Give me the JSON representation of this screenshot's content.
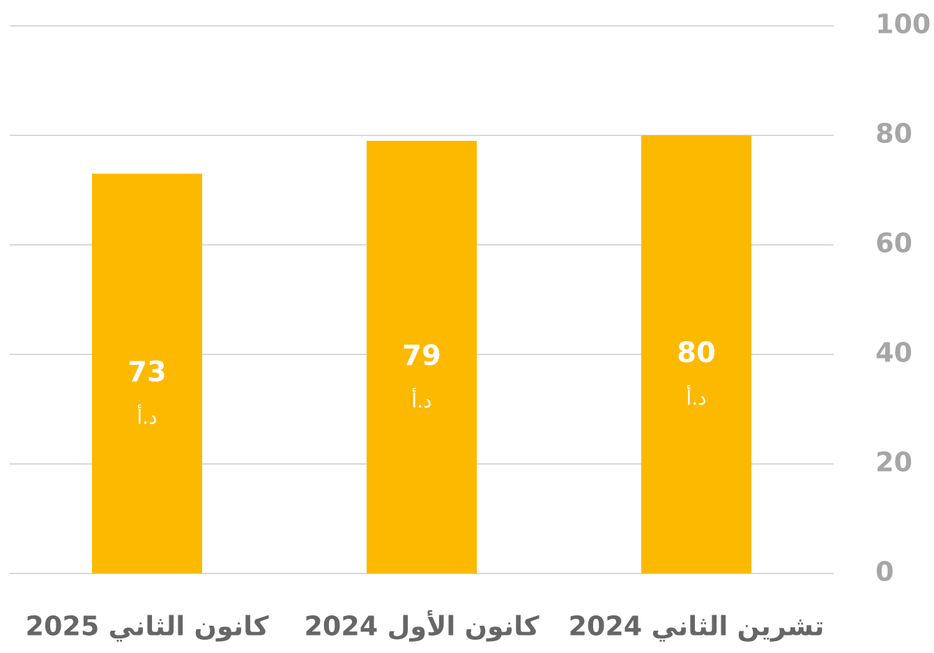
{
  "chart_data": {
    "type": "bar",
    "categories": [
      "تشرين الثاني 2024",
      "كانون الأول 2024",
      "كانون الثاني 2025"
    ],
    "values": [
      80,
      79,
      73
    ],
    "value_unit": "د.أ",
    "color": "#FDB900",
    "ylim": [
      0,
      100
    ],
    "yticks": [
      0,
      20,
      40,
      60,
      80,
      100
    ],
    "grid": true
  }
}
